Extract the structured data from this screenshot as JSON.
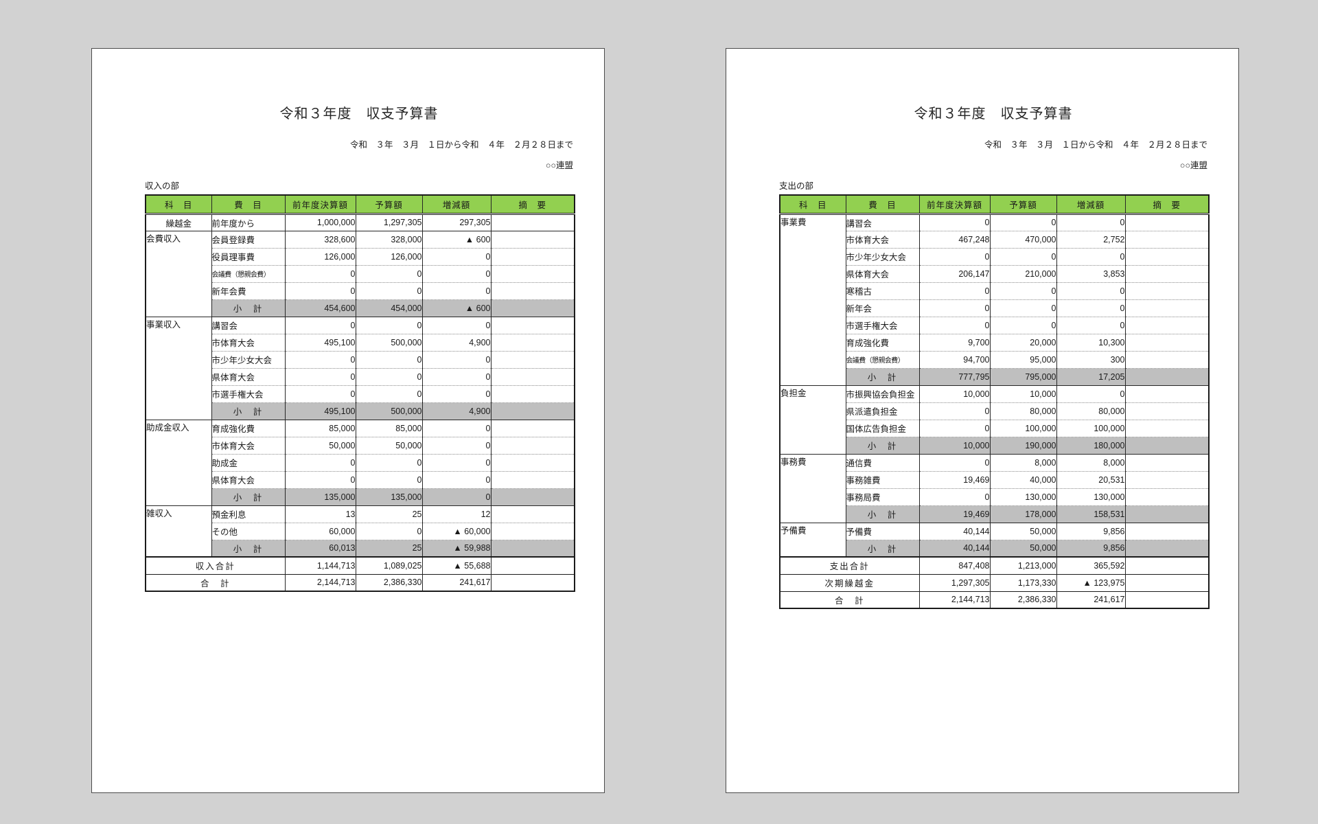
{
  "background": "#d2d2d2",
  "colors": {
    "header_bg": "#92d050",
    "subtotal_bg": "#bfbfbf",
    "page_bg": "#ffffff"
  },
  "pages": [
    {
      "id": "income",
      "title": "令和３年度　収支予算書",
      "period": "令和　３年　３月　１日から令和　４年　２月２８日まで",
      "org": "○○連盟",
      "section_label": "収入の部",
      "columns": [
        "科　目",
        "費　目",
        "前年度決算額",
        "予算額",
        "増減額",
        "摘　要"
      ],
      "subtotal_label": "小　計",
      "groups": [
        {
          "name": "繰越金",
          "center": true,
          "rows": [
            {
              "label": "前年度から",
              "prev": "1,000,000",
              "budget": "1,297,305",
              "diff": "297,305"
            }
          ],
          "subtotal": null
        },
        {
          "name": "会費収入",
          "rows": [
            {
              "label": "会員登録費",
              "prev": "328,600",
              "budget": "328,000",
              "diff": "▲ 600"
            },
            {
              "label": "役員理事費",
              "prev": "126,000",
              "budget": "126,000",
              "diff": "0"
            },
            {
              "label": "会議費（懇親会費）",
              "small": true,
              "prev": "0",
              "budget": "0",
              "diff": "0"
            },
            {
              "label": "新年会費",
              "prev": "0",
              "budget": "0",
              "diff": "0"
            }
          ],
          "subtotal": {
            "prev": "454,600",
            "budget": "454,000",
            "diff": "▲ 600"
          }
        },
        {
          "name": "事業収入",
          "rows": [
            {
              "label": "講習会",
              "prev": "0",
              "budget": "0",
              "diff": "0"
            },
            {
              "label": "市体育大会",
              "prev": "495,100",
              "budget": "500,000",
              "diff": "4,900"
            },
            {
              "label": "市少年少女大会",
              "prev": "0",
              "budget": "0",
              "diff": "0"
            },
            {
              "label": "県体育大会",
              "prev": "0",
              "budget": "0",
              "diff": "0"
            },
            {
              "label": "市選手権大会",
              "prev": "0",
              "budget": "0",
              "diff": "0"
            }
          ],
          "subtotal": {
            "prev": "495,100",
            "budget": "500,000",
            "diff": "4,900"
          }
        },
        {
          "name": "助成金収入",
          "rows": [
            {
              "label": "育成強化費",
              "prev": "85,000",
              "budget": "85,000",
              "diff": "0"
            },
            {
              "label": "市体育大会",
              "prev": "50,000",
              "budget": "50,000",
              "diff": "0"
            },
            {
              "label": "助成金",
              "prev": "0",
              "budget": "0",
              "diff": "0"
            },
            {
              "label": "県体育大会",
              "prev": "0",
              "budget": "0",
              "diff": "0"
            }
          ],
          "subtotal": {
            "prev": "135,000",
            "budget": "135,000",
            "diff": "0"
          }
        },
        {
          "name": "雑収入",
          "rows": [
            {
              "label": "預金利息",
              "prev": "13",
              "budget": "25",
              "diff": "12"
            },
            {
              "label": "その他",
              "prev": "60,000",
              "budget": "0",
              "diff": "▲ 60,000"
            }
          ],
          "subtotal": {
            "prev": "60,013",
            "budget": "25",
            "diff": "▲ 59,988"
          }
        }
      ],
      "totals": [
        {
          "label": "収入合計",
          "prev": "1,144,713",
          "budget": "1,089,025",
          "diff": "▲ 55,688"
        },
        {
          "label": "合　計",
          "prev": "2,144,713",
          "budget": "2,386,330",
          "diff": "241,617"
        }
      ]
    },
    {
      "id": "expenditure",
      "title": "令和３年度　収支予算書",
      "period": "令和　３年　３月　１日から令和　４年　２月２８日まで",
      "org": "○○連盟",
      "section_label": "支出の部",
      "columns": [
        "科　目",
        "費　目",
        "前年度決算額",
        "予算額",
        "増減額",
        "摘　要"
      ],
      "subtotal_label": "小　計",
      "groups": [
        {
          "name": "事業費",
          "rows": [
            {
              "label": "講習会",
              "prev": "0",
              "budget": "0",
              "diff": "0"
            },
            {
              "label": "市体育大会",
              "prev": "467,248",
              "budget": "470,000",
              "diff": "2,752"
            },
            {
              "label": "市少年少女大会",
              "prev": "0",
              "budget": "0",
              "diff": "0"
            },
            {
              "label": "県体育大会",
              "prev": "206,147",
              "budget": "210,000",
              "diff": "3,853"
            },
            {
              "label": "寒稽古",
              "prev": "0",
              "budget": "0",
              "diff": "0"
            },
            {
              "label": "新年会",
              "prev": "0",
              "budget": "0",
              "diff": "0"
            },
            {
              "label": "市選手権大会",
              "prev": "0",
              "budget": "0",
              "diff": "0"
            },
            {
              "label": "育成強化費",
              "prev": "9,700",
              "budget": "20,000",
              "diff": "10,300"
            },
            {
              "label": "会議費（懇親会費）",
              "small": true,
              "prev": "94,700",
              "budget": "95,000",
              "diff": "300"
            }
          ],
          "subtotal": {
            "prev": "777,795",
            "budget": "795,000",
            "diff": "17,205"
          }
        },
        {
          "name": "負担金",
          "rows": [
            {
              "label": "市振興協会負担金",
              "prev": "10,000",
              "budget": "10,000",
              "diff": "0"
            },
            {
              "label": "県派遣負担金",
              "prev": "0",
              "budget": "80,000",
              "diff": "80,000"
            },
            {
              "label": "国体広告負担金",
              "prev": "0",
              "budget": "100,000",
              "diff": "100,000"
            }
          ],
          "subtotal": {
            "prev": "10,000",
            "budget": "190,000",
            "diff": "180,000"
          }
        },
        {
          "name": "事務費",
          "rows": [
            {
              "label": "通信費",
              "prev": "0",
              "budget": "8,000",
              "diff": "8,000"
            },
            {
              "label": "事務雑費",
              "prev": "19,469",
              "budget": "40,000",
              "diff": "20,531"
            },
            {
              "label": "事務局費",
              "prev": "0",
              "budget": "130,000",
              "diff": "130,000"
            }
          ],
          "subtotal": {
            "prev": "19,469",
            "budget": "178,000",
            "diff": "158,531"
          }
        },
        {
          "name": "予備費",
          "rows": [
            {
              "label": "予備費",
              "prev": "40,144",
              "budget": "50,000",
              "diff": "9,856"
            }
          ],
          "subtotal": {
            "prev": "40,144",
            "budget": "50,000",
            "diff": "9,856"
          }
        }
      ],
      "totals": [
        {
          "label": "支出合計",
          "prev": "847,408",
          "budget": "1,213,000",
          "diff": "365,592"
        },
        {
          "label": "次期繰越金",
          "prev": "1,297,305",
          "budget": "1,173,330",
          "diff": "▲ 123,975"
        },
        {
          "label": "合　計",
          "prev": "2,144,713",
          "budget": "2,386,330",
          "diff": "241,617"
        }
      ]
    }
  ]
}
